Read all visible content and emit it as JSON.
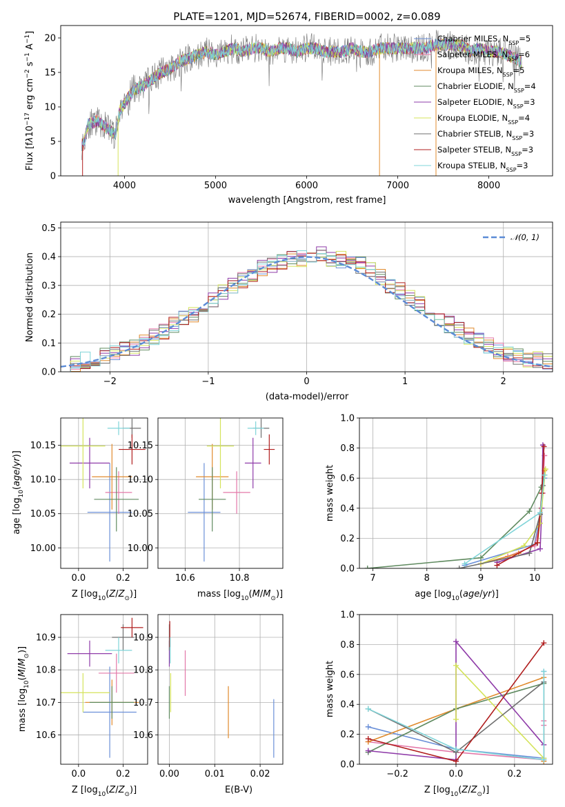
{
  "figure_title": "PLATE=1201, MJD=52674, FIBERID=0002, z=0.089",
  "colors": {
    "Chabrier MILES": "#6a8fd8",
    "Salpeter MILES": "#e377a8",
    "Kroupa MILES": "#e08a2c",
    "Chabrier ELODIE": "#5f8a5f",
    "Salpeter ELODIE": "#8e3aa8",
    "Kroupa ELODIE": "#d4e35a",
    "Chabrier STELIB": "#6e6e6e",
    "Salpeter STELIB": "#b01c1c",
    "Kroupa STELIB": "#7fd4d8",
    "normal": "#5b8bd6"
  },
  "chart_data": [
    {
      "id": "spectrum",
      "type": "line",
      "xlabel": "wavelength [Angstrom, rest frame]",
      "ylabel": "Flux [f_λ 10^-17 erg cm^-2 s^-1 A^-1]",
      "xlim": [
        3300,
        8700
      ],
      "ylim": [
        0,
        21.8
      ],
      "xticks": [
        4000,
        5000,
        6000,
        7000,
        8000
      ],
      "yticks": [
        0,
        5,
        10,
        15,
        20
      ],
      "legend_position": "upper-right",
      "grid": false,
      "data_x": [
        3550,
        3600,
        3700,
        3800,
        3900,
        3950,
        4000,
        4100,
        4200,
        4300,
        4400,
        4500,
        4600,
        4700,
        4800,
        4900,
        5000,
        5100,
        5200,
        5300,
        5400,
        5500,
        5600,
        5700,
        5800,
        5900,
        6000,
        6100,
        6200,
        6300,
        6400,
        6500,
        6600,
        6700,
        6800,
        6900,
        7000,
        7100,
        7200,
        7300,
        7400,
        7500,
        7600,
        7700,
        7800,
        7900,
        8000,
        8100,
        8200,
        8300,
        8350
      ],
      "data_y": [
        4.5,
        7.5,
        8.0,
        7.0,
        6.0,
        9.5,
        10.5,
        12.5,
        13.0,
        14.0,
        15.0,
        15.5,
        16.5,
        17.0,
        17.5,
        18.0,
        17.5,
        18.0,
        18.5,
        18.0,
        18.5,
        18.5,
        18.0,
        18.5,
        18.5,
        18.0,
        18.5,
        18.5,
        18.0,
        18.0,
        18.0,
        18.5,
        18.0,
        18.0,
        18.5,
        18.5,
        18.5,
        18.5,
        18.5,
        18.5,
        19.0,
        19.0,
        19.0,
        19.0,
        18.0,
        18.5,
        18.0,
        18.0,
        17.5,
        17.0,
        16.5
      ],
      "legend": [
        {
          "name": "Chabrier MILES",
          "n": 5
        },
        {
          "name": "Salpeter MILES",
          "n": 6
        },
        {
          "name": "Kroupa MILES",
          "n": 5
        },
        {
          "name": "Chabrier ELODIE",
          "n": 4
        },
        {
          "name": "Salpeter ELODIE",
          "n": 3
        },
        {
          "name": "Kroupa ELODIE",
          "n": 4
        },
        {
          "name": "Chabrier STELIB",
          "n": 3
        },
        {
          "name": "Salpeter STELIB",
          "n": 3
        },
        {
          "name": "Kroupa STELIB",
          "n": 3
        }
      ],
      "legend_suffix_pre": ", N",
      "legend_suffix_sub": "SSP",
      "legend_suffix_post": "="
    },
    {
      "id": "residuals",
      "type": "histogram",
      "xlabel": "(data-model)/error",
      "ylabel": "Normed distribution",
      "xlim": [
        -2.5,
        2.5
      ],
      "ylim": [
        0,
        0.52
      ],
      "xticks": [
        -2,
        -1,
        0,
        1,
        2
      ],
      "yticks": [
        0.0,
        0.1,
        0.2,
        0.3,
        0.4,
        0.5
      ],
      "grid": true,
      "bin_width": 0.1,
      "normal_label": "𝒩(0, 1)",
      "bins_center": [
        -2.45,
        -2.35,
        -2.25,
        -2.15,
        -2.05,
        -1.95,
        -1.85,
        -1.75,
        -1.65,
        -1.55,
        -1.45,
        -1.35,
        -1.25,
        -1.15,
        -1.05,
        -0.95,
        -0.85,
        -0.75,
        -0.65,
        -0.55,
        -0.45,
        -0.35,
        -0.25,
        -0.15,
        -0.05,
        0.05,
        0.15,
        0.25,
        0.35,
        0.45,
        0.55,
        0.65,
        0.75,
        0.85,
        0.95,
        1.05,
        1.15,
        1.25,
        1.35,
        1.45,
        1.55,
        1.65,
        1.75,
        1.85,
        1.95,
        2.05,
        2.15,
        2.25,
        2.35,
        2.45
      ],
      "base_values": [
        0.025,
        0.03,
        0.04,
        0.045,
        0.055,
        0.065,
        0.075,
        0.085,
        0.105,
        0.12,
        0.14,
        0.16,
        0.185,
        0.2,
        0.225,
        0.25,
        0.275,
        0.3,
        0.32,
        0.34,
        0.36,
        0.375,
        0.385,
        0.39,
        0.395,
        0.4,
        0.41,
        0.395,
        0.39,
        0.38,
        0.37,
        0.35,
        0.33,
        0.3,
        0.28,
        0.26,
        0.235,
        0.21,
        0.185,
        0.165,
        0.145,
        0.125,
        0.105,
        0.09,
        0.075,
        0.065,
        0.055,
        0.045,
        0.04,
        0.035
      ]
    },
    {
      "id": "age_vs_Z",
      "type": "errorbar",
      "xlabel": "Z [log10(Z/Z⊙)]",
      "ylabel": "age [log10(age/yr)]",
      "xlim": [
        -0.08,
        0.31
      ],
      "ylim": [
        9.97,
        10.19
      ],
      "xticks": [
        0.0,
        0.2
      ],
      "yticks": [
        10.0,
        10.05,
        10.1,
        10.15
      ],
      "grid": true,
      "points": [
        {
          "name": "Chabrier MILES",
          "x": 0.14,
          "xerr": 0.1,
          "y": 10.052,
          "yerr": 0.072
        },
        {
          "name": "Salpeter MILES",
          "x": 0.18,
          "xerr": 0.06,
          "y": 10.081,
          "yerr": 0.031
        },
        {
          "name": "Kroupa MILES",
          "x": 0.15,
          "xerr": 0.09,
          "y": 10.104,
          "yerr": 0.048
        },
        {
          "name": "Chabrier ELODIE",
          "x": 0.17,
          "xerr": 0.1,
          "y": 10.071,
          "yerr": 0.047
        },
        {
          "name": "Salpeter ELODIE",
          "x": 0.05,
          "xerr": 0.09,
          "y": 10.124,
          "yerr": 0.037
        },
        {
          "name": "Kroupa ELODIE",
          "x": 0.02,
          "xerr": 0.1,
          "y": 10.149,
          "yerr": 0.062
        },
        {
          "name": "Chabrier STELIB",
          "x": 0.24,
          "xerr": 0.04,
          "y": 10.175,
          "yerr": 0.014
        },
        {
          "name": "Salpeter STELIB",
          "x": 0.24,
          "xerr": 0.06,
          "y": 10.144,
          "yerr": 0.022
        },
        {
          "name": "Kroupa STELIB",
          "x": 0.18,
          "xerr": 0.05,
          "y": 10.175,
          "yerr": 0.01
        }
      ]
    },
    {
      "id": "age_vs_mass",
      "type": "errorbar",
      "xlabel": "mass [log10(M/M⊙)]",
      "ylabel": "",
      "xlim": [
        10.5,
        10.96
      ],
      "ylim": [
        9.97,
        10.19
      ],
      "xticks": [
        10.6,
        10.8
      ],
      "yticks": [
        10.0,
        10.05,
        10.1,
        10.15
      ],
      "grid": true,
      "points": [
        {
          "name": "Chabrier MILES",
          "x": 10.67,
          "xerr": 0.06,
          "y": 10.052,
          "yerr": 0.072
        },
        {
          "name": "Salpeter MILES",
          "x": 10.79,
          "xerr": 0.05,
          "y": 10.081,
          "yerr": 0.031
        },
        {
          "name": "Kroupa MILES",
          "x": 10.7,
          "xerr": 0.06,
          "y": 10.104,
          "yerr": 0.048
        },
        {
          "name": "Chabrier ELODIE",
          "x": 10.7,
          "xerr": 0.05,
          "y": 10.071,
          "yerr": 0.047
        },
        {
          "name": "Salpeter ELODIE",
          "x": 10.85,
          "xerr": 0.03,
          "y": 10.124,
          "yerr": 0.037
        },
        {
          "name": "Kroupa ELODIE",
          "x": 10.73,
          "xerr": 0.05,
          "y": 10.149,
          "yerr": 0.062
        },
        {
          "name": "Chabrier STELIB",
          "x": 10.88,
          "xerr": 0.03,
          "y": 10.175,
          "yerr": 0.014
        },
        {
          "name": "Salpeter STELIB",
          "x": 10.91,
          "xerr": 0.02,
          "y": 10.144,
          "yerr": 0.022
        },
        {
          "name": "Kroupa STELIB",
          "x": 10.86,
          "xerr": 0.03,
          "y": 10.175,
          "yerr": 0.01
        }
      ]
    },
    {
      "id": "weight_vs_age",
      "type": "line",
      "xlabel": "age [log10(age/yr)]",
      "ylabel": "mass weight",
      "xlim": [
        6.75,
        10.33
      ],
      "ylim": [
        0,
        1.0
      ],
      "xticks": [
        7,
        8,
        9,
        10
      ],
      "yticks": [
        0.0,
        0.2,
        0.4,
        0.6,
        0.8,
        1.0
      ],
      "grid": true,
      "series": [
        {
          "name": "Chabrier MILES",
          "x": [
            8.7,
            10.0,
            10.1,
            10.18
          ],
          "y": [
            0.02,
            0.16,
            0.36,
            0.6
          ]
        },
        {
          "name": "Salpeter MILES",
          "x": [
            9.0,
            9.5,
            10.0,
            10.1,
            10.15,
            10.18
          ],
          "y": [
            0.03,
            0.08,
            0.15,
            0.3,
            0.5,
            0.75
          ]
        },
        {
          "name": "Kroupa MILES",
          "x": [
            9.0,
            9.7,
            10.05,
            10.12,
            10.18
          ],
          "y": [
            0.03,
            0.1,
            0.17,
            0.4,
            0.65
          ]
        },
        {
          "name": "Chabrier ELODIE",
          "x": [
            6.9,
            9.0,
            9.9,
            10.12,
            10.18
          ],
          "y": [
            0.0,
            0.07,
            0.38,
            0.54,
            0.62
          ]
        },
        {
          "name": "Salpeter ELODIE",
          "x": [
            9.3,
            10.1,
            10.13,
            10.15
          ],
          "y": [
            0.04,
            0.13,
            0.4,
            0.82
          ]
        },
        {
          "name": "Kroupa ELODIE",
          "x": [
            9.0,
            9.8,
            10.1,
            10.2
          ],
          "y": [
            0.03,
            0.15,
            0.3,
            0.66
          ]
        },
        {
          "name": "Chabrier STELIB",
          "x": [
            8.6,
            9.9,
            10.1,
            10.15
          ],
          "y": [
            0.0,
            0.1,
            0.36,
            0.55
          ]
        },
        {
          "name": "Salpeter STELIB",
          "x": [
            9.3,
            10.05,
            10.13,
            10.17
          ],
          "y": [
            0.02,
            0.17,
            0.5,
            0.81
          ]
        },
        {
          "name": "Kroupa STELIB",
          "x": [
            8.7,
            10.1,
            10.18
          ],
          "y": [
            0.03,
            0.37,
            0.62
          ]
        }
      ]
    },
    {
      "id": "mass_vs_Z",
      "type": "errorbar",
      "xlabel": "Z [log10(Z/Z⊙)]",
      "ylabel": "mass [log10(M/M⊙)]",
      "xlim": [
        -0.08,
        0.31
      ],
      "ylim": [
        10.51,
        10.97
      ],
      "xticks": [
        0.0,
        0.2
      ],
      "yticks": [
        10.6,
        10.7,
        10.8,
        10.9
      ],
      "grid": true,
      "points": [
        {
          "name": "Chabrier MILES",
          "x": 0.14,
          "xerr": 0.12,
          "y": 10.67,
          "yerr": 0.14
        },
        {
          "name": "Salpeter MILES",
          "x": 0.17,
          "xerr": 0.08,
          "y": 10.79,
          "yerr": 0.06
        },
        {
          "name": "Kroupa MILES",
          "x": 0.15,
          "xerr": 0.12,
          "y": 10.7,
          "yerr": 0.07
        },
        {
          "name": "Chabrier ELODIE",
          "x": 0.15,
          "xerr": 0.1,
          "y": 10.7,
          "yerr": 0.05
        },
        {
          "name": "Salpeter ELODIE",
          "x": 0.05,
          "xerr": 0.1,
          "y": 10.85,
          "yerr": 0.04
        },
        {
          "name": "Kroupa ELODIE",
          "x": 0.02,
          "xerr": 0.12,
          "y": 10.73,
          "yerr": 0.06
        },
        {
          "name": "Chabrier STELIB",
          "x": 0.2,
          "xerr": 0.05,
          "y": 10.9,
          "yerr": 0.04
        },
        {
          "name": "Salpeter STELIB",
          "x": 0.24,
          "xerr": 0.05,
          "y": 10.93,
          "yerr": 0.03
        },
        {
          "name": "Kroupa STELIB",
          "x": 0.18,
          "xerr": 0.06,
          "y": 10.86,
          "yerr": 0.04
        }
      ]
    },
    {
      "id": "mass_vs_EBV",
      "type": "errorbar",
      "xlabel": "E(B-V)",
      "ylabel": "",
      "xlim": [
        -0.0025,
        0.025
      ],
      "ylim": [
        10.51,
        10.97
      ],
      "xticks": [
        0.0,
        0.01,
        0.02
      ],
      "yticks": [
        10.6,
        10.7,
        10.8,
        10.9
      ],
      "grid": true,
      "points": [
        {
          "name": "Chabrier MILES",
          "x": 0.023,
          "xerr": 0,
          "y": 10.62,
          "yerr": 0.09
        },
        {
          "name": "Salpeter MILES",
          "x": 0.0035,
          "xerr": 0,
          "y": 10.79,
          "yerr": 0.07
        },
        {
          "name": "Kroupa MILES",
          "x": 0.013,
          "xerr": 0,
          "y": 10.67,
          "yerr": 0.08
        },
        {
          "name": "Chabrier ELODIE",
          "x": 0.0,
          "xerr": 0,
          "y": 10.7,
          "yerr": 0.05
        },
        {
          "name": "Salpeter ELODIE",
          "x": 0.0,
          "xerr": 0,
          "y": 10.85,
          "yerr": 0.04
        },
        {
          "name": "Kroupa ELODIE",
          "x": 0.0003,
          "xerr": 0,
          "y": 10.73,
          "yerr": 0.06
        },
        {
          "name": "Chabrier STELIB",
          "x": 0.0,
          "xerr": 0,
          "y": 10.9,
          "yerr": 0.04
        },
        {
          "name": "Salpeter STELIB",
          "x": 0.0001,
          "xerr": 0,
          "y": 10.91,
          "yerr": 0.04
        },
        {
          "name": "Kroupa STELIB",
          "x": 0.0002,
          "xerr": 0,
          "y": 10.86,
          "yerr": 0.04
        }
      ]
    },
    {
      "id": "weight_vs_Z",
      "type": "line",
      "xlabel": "Z [log10(Z/Z⊙)]",
      "ylabel": "mass weight",
      "xlim": [
        -0.33,
        0.33
      ],
      "ylim": [
        0,
        1.0
      ],
      "xticks": [
        -0.2,
        0.0,
        0.2
      ],
      "yticks": [
        0.0,
        0.2,
        0.4,
        0.6,
        0.8,
        1.0
      ],
      "grid": true,
      "series": [
        {
          "name": "Chabrier MILES",
          "x": [
            -0.3,
            0.0,
            0.3,
            0.3
          ],
          "y": [
            0.25,
            0.1,
            0.04,
            0.62
          ]
        },
        {
          "name": "Salpeter MILES",
          "x": [
            -0.3,
            0.0,
            0.3,
            0.3,
            0.3
          ],
          "y": [
            0.15,
            0.08,
            0.03,
            0.26,
            0.29
          ]
        },
        {
          "name": "Kroupa MILES",
          "x": [
            -0.3,
            0.0,
            0.3,
            0.3
          ],
          "y": [
            0.15,
            0.37,
            0.58,
            0.02
          ]
        },
        {
          "name": "Chabrier ELODIE",
          "x": [
            -0.3,
            0.0,
            0.3
          ],
          "y": [
            0.08,
            0.37,
            0.54
          ]
        },
        {
          "name": "Salpeter ELODIE",
          "x": [
            -0.3,
            0.0,
            0.0,
            0.3
          ],
          "y": [
            0.09,
            0.03,
            0.82,
            0.13
          ]
        },
        {
          "name": "Kroupa ELODIE",
          "x": [
            0.0,
            0.0,
            0.3
          ],
          "y": [
            0.3,
            0.66,
            0.04
          ]
        },
        {
          "name": "Chabrier STELIB",
          "x": [
            -0.3,
            0.0,
            0.3
          ],
          "y": [
            0.37,
            0.08,
            0.55
          ]
        },
        {
          "name": "Salpeter STELIB",
          "x": [
            -0.3,
            0.0,
            0.3
          ],
          "y": [
            0.17,
            0.02,
            0.81
          ]
        },
        {
          "name": "Kroupa STELIB",
          "x": [
            -0.3,
            0.0,
            0.3,
            0.3
          ],
          "y": [
            0.37,
            0.1,
            0.03,
            0.62
          ]
        }
      ]
    }
  ]
}
